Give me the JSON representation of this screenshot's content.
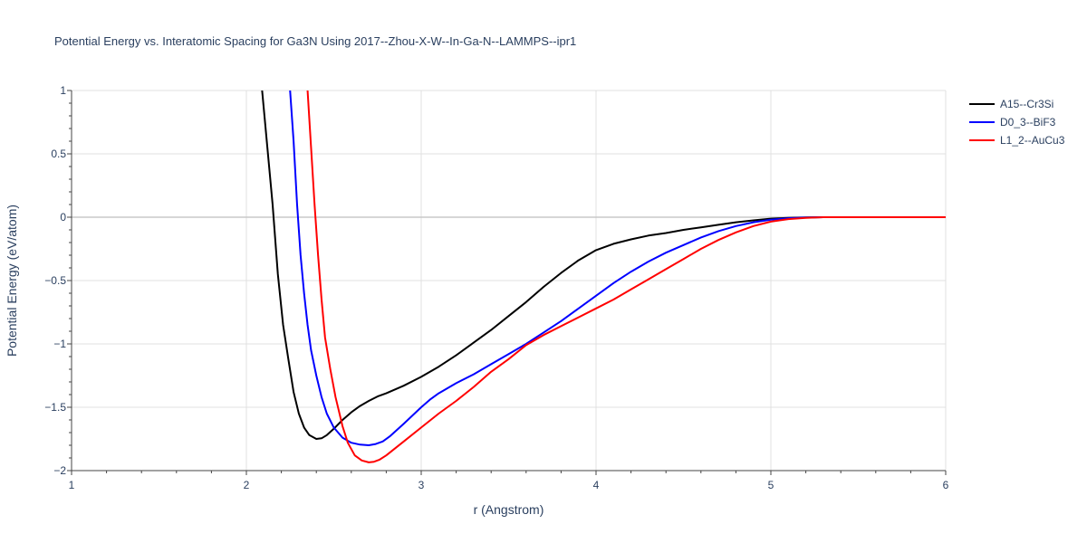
{
  "chart_data": {
    "type": "line",
    "title": "Potential Energy vs. Interatomic Spacing for Ga3N Using 2017--Zhou-X-W--In-Ga-N--LAMMPS--ipr1",
    "xlabel": "r (Angstrom)",
    "ylabel": "Potential Energy (eV/atom)",
    "xlim": [
      1,
      6
    ],
    "ylim": [
      -2,
      1
    ],
    "x_ticks": [
      1,
      2,
      3,
      4,
      5,
      6
    ],
    "x_tick_labels": [
      "1",
      "2",
      "3",
      "4",
      "5",
      "6"
    ],
    "y_ticks": [
      -2,
      -1.5,
      -1,
      -0.5,
      0,
      0.5,
      1
    ],
    "y_tick_labels": [
      "−2",
      "−1.5",
      "−1",
      "−0.5",
      "0",
      "0.5",
      "1"
    ],
    "grid": true,
    "legend_position": "top-right",
    "series": [
      {
        "name": "A15--Cr3Si",
        "color": "#000000",
        "x": [
          2.09,
          2.12,
          2.15,
          2.18,
          2.21,
          2.24,
          2.27,
          2.3,
          2.33,
          2.36,
          2.4,
          2.43,
          2.46,
          2.5,
          2.55,
          2.6,
          2.65,
          2.7,
          2.75,
          2.8,
          2.9,
          3.0,
          3.1,
          3.2,
          3.3,
          3.4,
          3.5,
          3.6,
          3.7,
          3.8,
          3.9,
          4.0,
          4.1,
          4.2,
          4.3,
          4.4,
          4.5,
          4.6,
          4.7,
          4.8,
          4.9,
          5.0,
          5.1,
          5.2,
          5.3,
          5.5,
          5.8,
          6.0
        ],
        "y": [
          1.0,
          0.55,
          0.1,
          -0.45,
          -0.85,
          -1.12,
          -1.38,
          -1.55,
          -1.66,
          -1.72,
          -1.75,
          -1.745,
          -1.72,
          -1.67,
          -1.6,
          -1.54,
          -1.49,
          -1.45,
          -1.415,
          -1.39,
          -1.33,
          -1.26,
          -1.18,
          -1.09,
          -0.99,
          -0.89,
          -0.78,
          -0.67,
          -0.55,
          -0.44,
          -0.34,
          -0.26,
          -0.21,
          -0.175,
          -0.145,
          -0.125,
          -0.1,
          -0.08,
          -0.06,
          -0.04,
          -0.025,
          -0.012,
          -0.005,
          -0.002,
          0.0,
          0.0,
          0.0,
          0.0
        ]
      },
      {
        "name": "D0_3--BiF3",
        "color": "#0000ff",
        "x": [
          2.25,
          2.27,
          2.29,
          2.31,
          2.33,
          2.35,
          2.37,
          2.4,
          2.43,
          2.46,
          2.5,
          2.55,
          2.6,
          2.65,
          2.7,
          2.74,
          2.78,
          2.82,
          2.9,
          3.0,
          3.05,
          3.1,
          3.2,
          3.3,
          3.4,
          3.5,
          3.6,
          3.7,
          3.8,
          3.9,
          4.0,
          4.1,
          4.2,
          4.3,
          4.4,
          4.5,
          4.6,
          4.7,
          4.8,
          4.9,
          5.0,
          5.1,
          5.2,
          5.3,
          5.5,
          5.8,
          6.0
        ],
        "y": [
          1.0,
          0.6,
          0.1,
          -0.3,
          -0.6,
          -0.85,
          -1.05,
          -1.25,
          -1.42,
          -1.55,
          -1.66,
          -1.74,
          -1.78,
          -1.795,
          -1.8,
          -1.79,
          -1.77,
          -1.73,
          -1.63,
          -1.5,
          -1.44,
          -1.39,
          -1.31,
          -1.24,
          -1.16,
          -1.08,
          -1.0,
          -0.91,
          -0.82,
          -0.72,
          -0.62,
          -0.52,
          -0.43,
          -0.35,
          -0.28,
          -0.22,
          -0.16,
          -0.11,
          -0.07,
          -0.04,
          -0.02,
          -0.008,
          -0.003,
          0.0,
          0.0,
          0.0,
          0.0
        ]
      },
      {
        "name": "L1_2--AuCu3",
        "color": "#ff0000",
        "x": [
          2.35,
          2.37,
          2.39,
          2.41,
          2.43,
          2.45,
          2.48,
          2.51,
          2.55,
          2.58,
          2.62,
          2.66,
          2.7,
          2.73,
          2.76,
          2.8,
          2.9,
          3.0,
          3.1,
          3.2,
          3.3,
          3.4,
          3.5,
          3.6,
          3.7,
          3.8,
          3.9,
          4.0,
          4.1,
          4.2,
          4.3,
          4.4,
          4.5,
          4.6,
          4.7,
          4.8,
          4.9,
          5.0,
          5.1,
          5.2,
          5.3,
          5.5,
          5.8,
          6.0
        ],
        "y": [
          1.0,
          0.55,
          0.1,
          -0.3,
          -0.65,
          -0.95,
          -1.2,
          -1.42,
          -1.65,
          -1.78,
          -1.88,
          -1.92,
          -1.935,
          -1.93,
          -1.915,
          -1.88,
          -1.77,
          -1.66,
          -1.55,
          -1.45,
          -1.34,
          -1.22,
          -1.12,
          -1.01,
          -0.93,
          -0.86,
          -0.79,
          -0.72,
          -0.65,
          -0.57,
          -0.49,
          -0.41,
          -0.33,
          -0.25,
          -0.18,
          -0.12,
          -0.07,
          -0.035,
          -0.015,
          -0.005,
          0.0,
          0.0,
          0.0,
          0.0
        ]
      }
    ]
  }
}
